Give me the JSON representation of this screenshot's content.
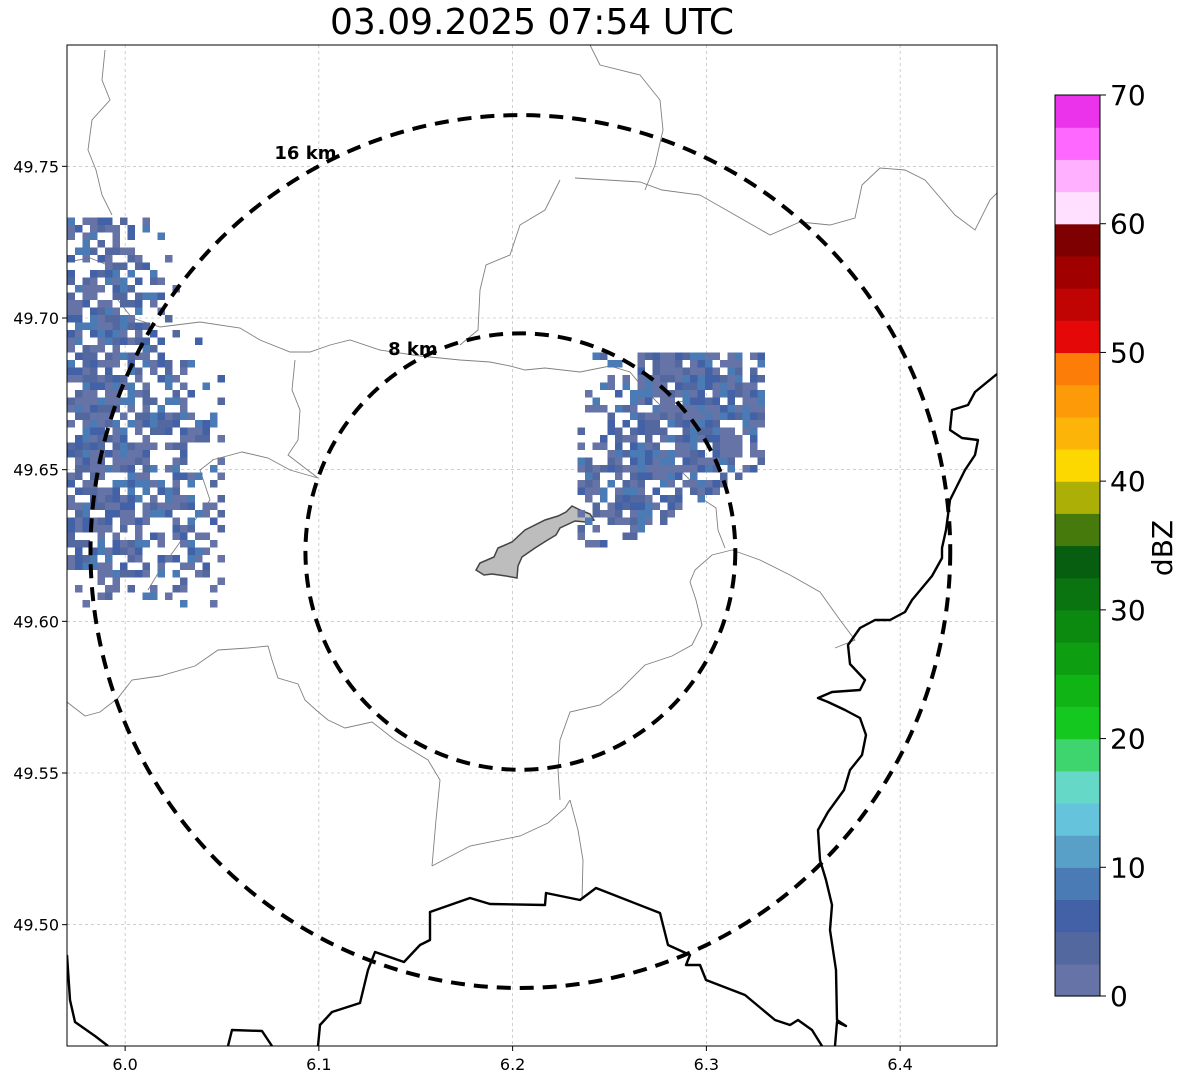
{
  "title": "03.09.2025 07:54 UTC",
  "map": {
    "lon_range": [
      5.97,
      6.45
    ],
    "lat_range": [
      49.46,
      49.79
    ],
    "x_ticks": [
      6.0,
      6.1,
      6.2,
      6.3,
      6.4
    ],
    "x_tick_labels": [
      "6.0",
      "6.1",
      "6.2",
      "6.3",
      "6.4"
    ],
    "y_ticks": [
      49.5,
      49.55,
      49.6,
      49.65,
      49.7,
      49.75
    ],
    "y_tick_labels": [
      "49.50",
      "49.55",
      "49.60",
      "49.65",
      "49.70",
      "49.75"
    ],
    "grid": true,
    "radar_center": {
      "lon": 6.204,
      "lat": 49.623
    },
    "range_rings": [
      {
        "radius_km": 8,
        "label": "8 km"
      },
      {
        "radius_km": 16,
        "label": "16 km"
      }
    ]
  },
  "colorbar": {
    "label": "dBZ",
    "min": 0,
    "max": 70,
    "step": 2.5,
    "tick_values": [
      0,
      10,
      20,
      30,
      40,
      50,
      60,
      70
    ],
    "tick_labels": [
      "0",
      "10",
      "20",
      "30",
      "40",
      "50",
      "60",
      "70"
    ],
    "colors": [
      "#6673a6",
      "#5468a0",
      "#4261a6",
      "#4a7bb4",
      "#58a0c8",
      "#66c3dc",
      "#66d8c8",
      "#3ed46e",
      "#14c820",
      "#10b414",
      "#0e9e12",
      "#0c8a10",
      "#0a7410",
      "#085e10",
      "#467a0c",
      "#acb006",
      "#fcd800",
      "#fcb408",
      "#fc9a08",
      "#fc7e08",
      "#e40808",
      "#c00404",
      "#a00000",
      "#7e0000",
      "#ffe0ff",
      "#ffb0ff",
      "#ff68ff",
      "#ea33ea"
    ]
  },
  "chart_data": {
    "type": "heatmap",
    "title": "03.09.2025 07:54 UTC",
    "colorbar_label": "dBZ",
    "value_range": [
      0,
      70
    ],
    "echoes": [
      {
        "region": "west",
        "lon_range": [
          5.97,
          6.05
        ],
        "lat_range": [
          49.605,
          49.735
        ],
        "reflectivity_dbz": [
          0,
          7.5
        ]
      },
      {
        "region": "northeast",
        "lon_range": [
          6.23,
          6.33
        ],
        "lat_range": [
          49.612,
          49.69
        ],
        "reflectivity_dbz": [
          0,
          7.5
        ]
      }
    ]
  }
}
